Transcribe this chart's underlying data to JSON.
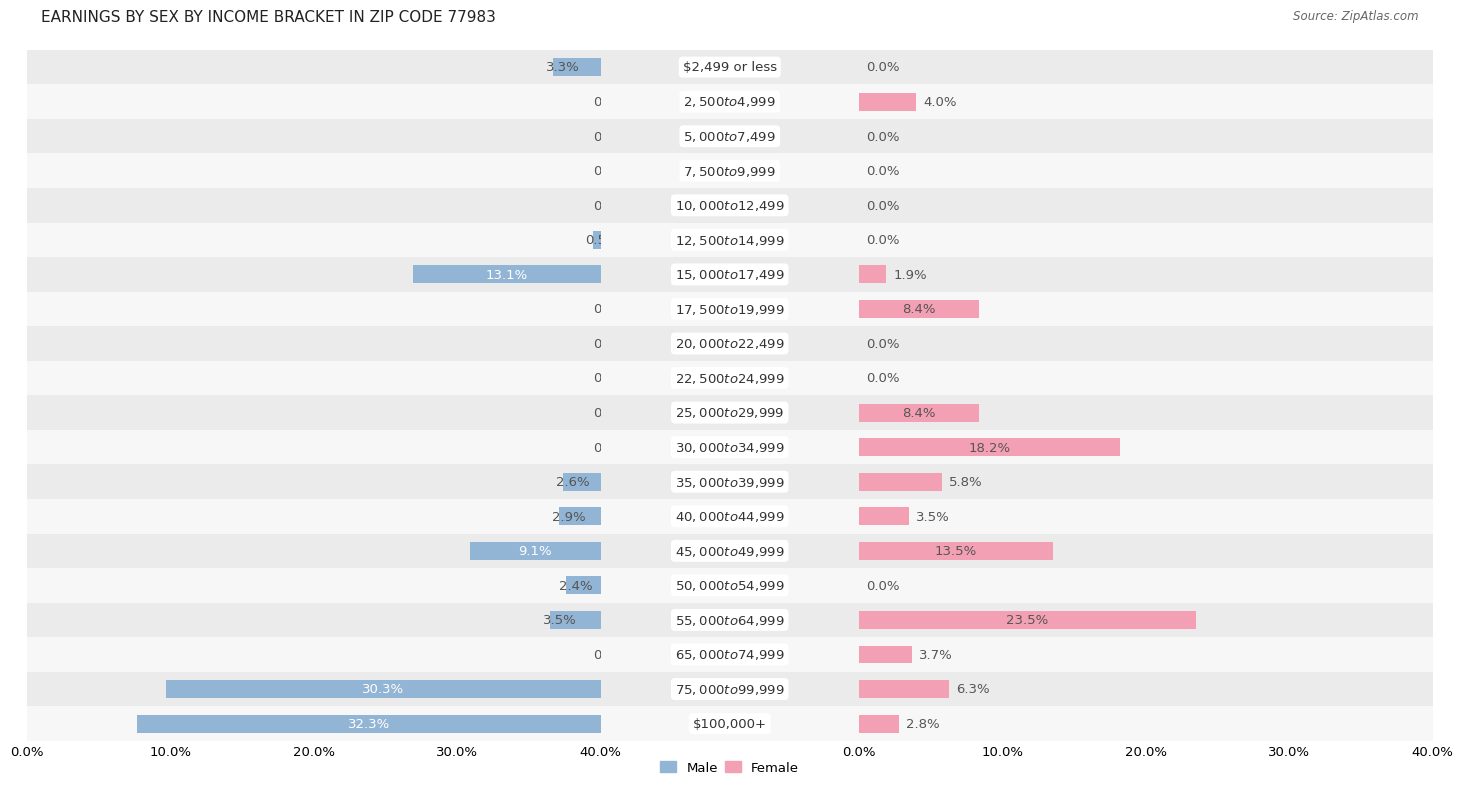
{
  "title": "EARNINGS BY SEX BY INCOME BRACKET IN ZIP CODE 77983",
  "source": "Source: ZipAtlas.com",
  "categories": [
    "$2,499 or less",
    "$2,500 to $4,999",
    "$5,000 to $7,499",
    "$7,500 to $9,999",
    "$10,000 to $12,499",
    "$12,500 to $14,999",
    "$15,000 to $17,499",
    "$17,500 to $19,999",
    "$20,000 to $22,499",
    "$22,500 to $24,999",
    "$25,000 to $29,999",
    "$30,000 to $34,999",
    "$35,000 to $39,999",
    "$40,000 to $44,999",
    "$45,000 to $49,999",
    "$50,000 to $54,999",
    "$55,000 to $64,999",
    "$65,000 to $74,999",
    "$75,000 to $99,999",
    "$100,000+"
  ],
  "male_values": [
    3.3,
    0.0,
    0.0,
    0.0,
    0.0,
    0.55,
    13.1,
    0.0,
    0.0,
    0.0,
    0.0,
    0.0,
    2.6,
    2.9,
    9.1,
    2.4,
    3.5,
    0.0,
    30.3,
    32.3
  ],
  "female_values": [
    0.0,
    4.0,
    0.0,
    0.0,
    0.0,
    0.0,
    1.9,
    8.4,
    0.0,
    0.0,
    8.4,
    18.2,
    5.8,
    3.5,
    13.5,
    0.0,
    23.5,
    3.7,
    6.3,
    2.8
  ],
  "male_color": "#93b5d5",
  "female_color": "#f4a0b4",
  "label_color": "#555555",
  "white_label_color": "#ffffff",
  "background_color": "#ffffff",
  "row_even_color": "#ebebeb",
  "row_odd_color": "#f7f7f7",
  "xlim": 40.0,
  "bar_height": 0.52,
  "title_fontsize": 11,
  "label_fontsize": 9.5,
  "tick_fontsize": 9.5,
  "category_fontsize": 9.5
}
